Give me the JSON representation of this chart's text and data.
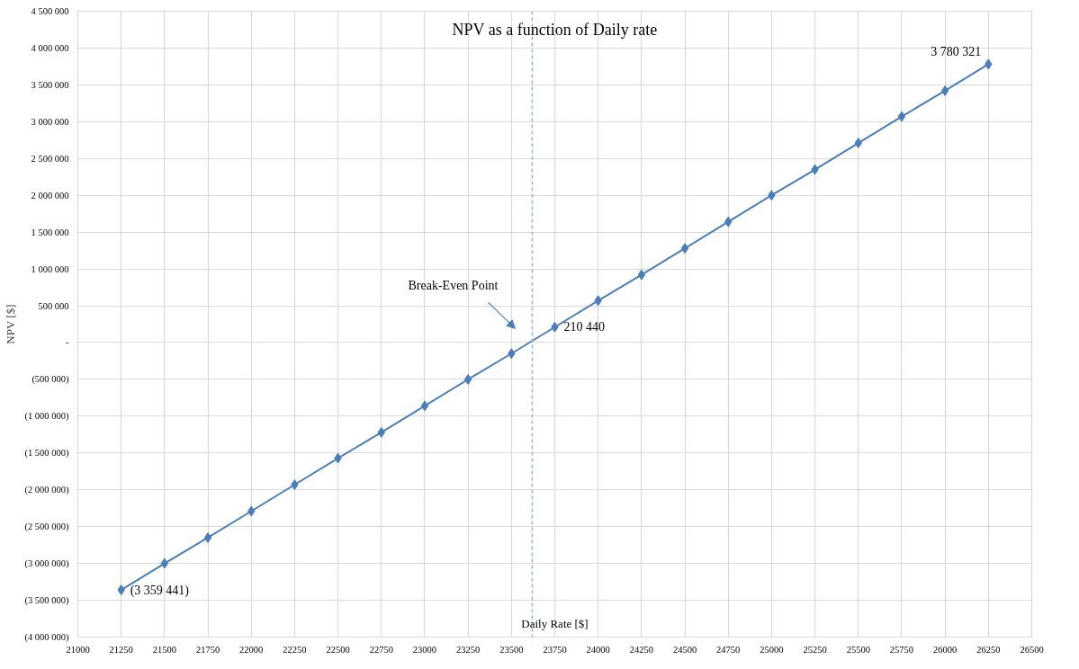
{
  "chart_data": {
    "type": "line",
    "title": "NPV as a function of Daily rate",
    "xlabel": "Daily Rate [$]",
    "ylabel": "NPV [$]",
    "x": [
      21250,
      21500,
      21750,
      22000,
      22250,
      22500,
      22750,
      23000,
      23250,
      23500,
      23750,
      24000,
      24250,
      24500,
      24750,
      25000,
      25250,
      25500,
      25750,
      26000,
      26250
    ],
    "values": [
      -3359441,
      -3000000,
      -2650000,
      -2290000,
      -1930000,
      -1570000,
      -1220000,
      -860000,
      -500000,
      -150000,
      210440,
      570000,
      920000,
      1280000,
      1640000,
      2000000,
      2350000,
      2710000,
      3070000,
      3420000,
      3780321
    ],
    "value_labels": [
      "(3 359 441)",
      null,
      null,
      null,
      null,
      null,
      null,
      null,
      null,
      null,
      "210 440",
      null,
      null,
      null,
      null,
      null,
      null,
      null,
      null,
      null,
      "3 780 321"
    ],
    "color": "#4a7ebb",
    "marker": "diamond",
    "line_style": "solid",
    "xlim": [
      21000,
      26500
    ],
    "xticks": [
      21000,
      21250,
      21500,
      21750,
      22000,
      22250,
      22500,
      22750,
      23000,
      23250,
      23500,
      23750,
      24000,
      24250,
      24500,
      24750,
      25000,
      25250,
      25500,
      25750,
      26000,
      26250,
      26500
    ],
    "ylim": [
      -4000000,
      4500000
    ],
    "yticks": [
      {
        "value": -4000000,
        "label": "(4 000 000)"
      },
      {
        "value": -3500000,
        "label": "(3 500 000)"
      },
      {
        "value": -3000000,
        "label": "(3 000 000)"
      },
      {
        "value": -2500000,
        "label": "(2 500 000)"
      },
      {
        "value": -2000000,
        "label": "(2 000 000)"
      },
      {
        "value": -1500000,
        "label": "(1 500 000)"
      },
      {
        "value": -1000000,
        "label": "(1 000 000)"
      },
      {
        "value": -500000,
        "label": "(500 000)"
      },
      {
        "value": 0,
        "label": "-"
      },
      {
        "value": 500000,
        "label": "500 000"
      },
      {
        "value": 1000000,
        "label": "1 000 000"
      },
      {
        "value": 1500000,
        "label": "1 500 000"
      },
      {
        "value": 2000000,
        "label": "2 000 000"
      },
      {
        "value": 2500000,
        "label": "2 500 000"
      },
      {
        "value": 3000000,
        "label": "3 000 000"
      },
      {
        "value": 3500000,
        "label": "3 500 000"
      },
      {
        "value": 4000000,
        "label": "4 000 000"
      },
      {
        "value": 4500000,
        "label": "4 500 000"
      }
    ],
    "grid": true,
    "ref_lines": [
      {
        "axis": "x",
        "value": 23620,
        "label": "Break-Even Point",
        "color": "#8eb4e3",
        "line_style": "dashed"
      }
    ]
  }
}
